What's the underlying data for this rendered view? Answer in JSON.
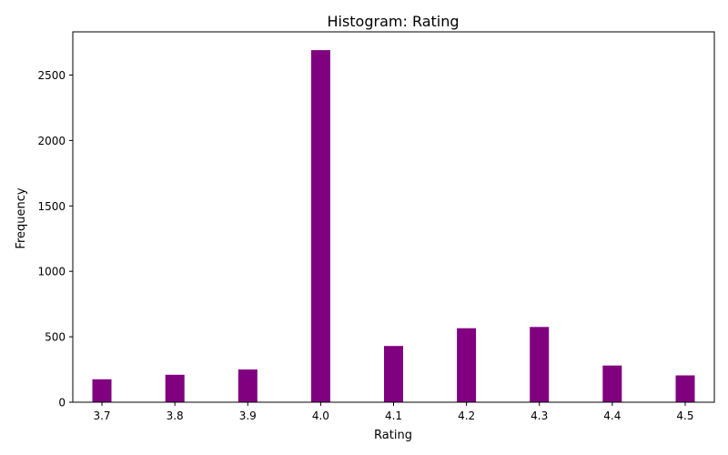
{
  "chart_data": {
    "type": "bar",
    "title": "Histogram: Rating",
    "xlabel": "Rating",
    "ylabel": "Frequency",
    "bar_color": "#800080",
    "bins": [
      {
        "x": 3.7,
        "value": 175
      },
      {
        "x": 3.8,
        "value": 210
      },
      {
        "x": 3.9,
        "value": 250
      },
      {
        "x": 4.0,
        "value": 2690
      },
      {
        "x": 4.1,
        "value": 430
      },
      {
        "x": 4.2,
        "value": 565
      },
      {
        "x": 4.3,
        "value": 575
      },
      {
        "x": 4.4,
        "value": 280
      },
      {
        "x": 4.5,
        "value": 205
      }
    ],
    "x_ticks": [
      "3.7",
      "3.8",
      "3.9",
      "4.0",
      "4.1",
      "4.2",
      "4.3",
      "4.4",
      "4.5"
    ],
    "y_ticks": [
      0,
      500,
      1000,
      1500,
      2000,
      2500
    ],
    "xlim": [
      3.66,
      4.54
    ],
    "ylim": [
      0,
      2830
    ],
    "grid": false
  }
}
